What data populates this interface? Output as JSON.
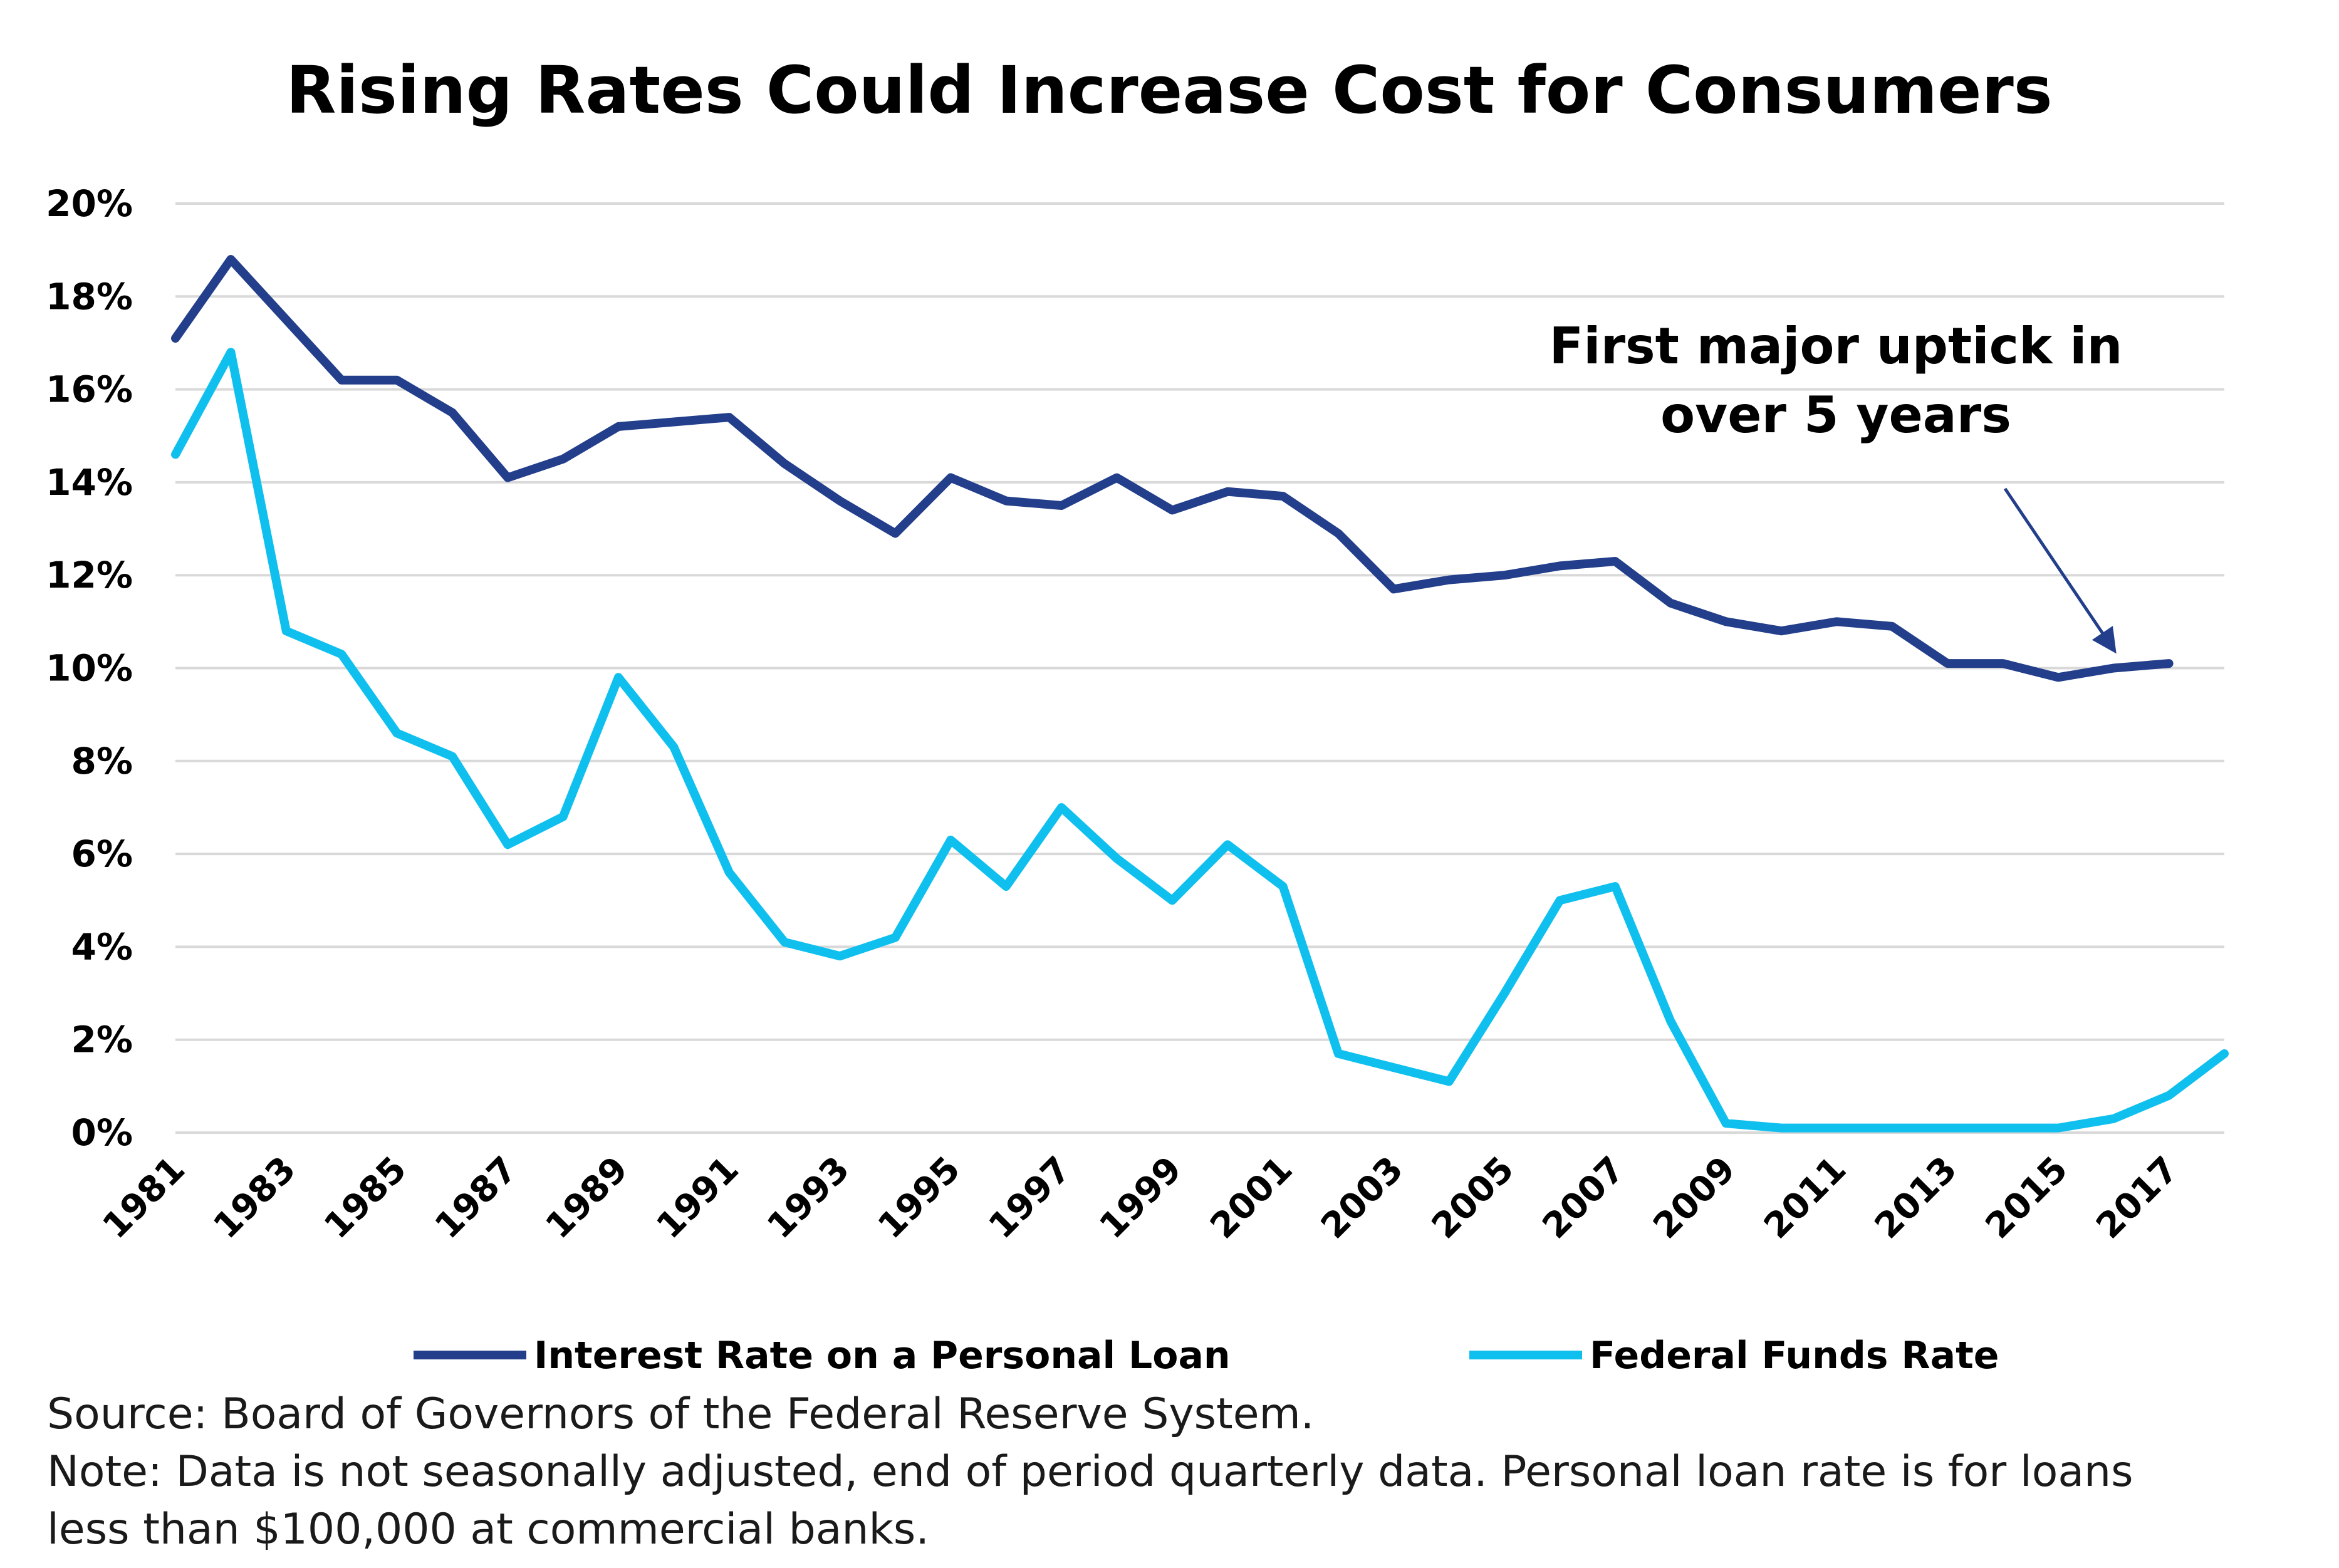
{
  "chart_data": {
    "type": "line",
    "title": "Rising Rates Could Increase Cost for Consumers",
    "x": [
      1981,
      1982,
      1983,
      1984,
      1985,
      1986,
      1987,
      1988,
      1989,
      1990,
      1991,
      1992,
      1993,
      1994,
      1995,
      1996,
      1997,
      1998,
      1999,
      2000,
      2001,
      2002,
      2003,
      2004,
      2005,
      2006,
      2007,
      2008,
      2009,
      2010,
      2011,
      2012,
      2013,
      2014,
      2015,
      2016,
      2017,
      2018
    ],
    "x_tick_labels": [
      "1981",
      "1983",
      "1985",
      "1987",
      "1989",
      "1991",
      "1993",
      "1995",
      "1997",
      "1999",
      "2001",
      "2003",
      "2005",
      "2007",
      "2009",
      "2011",
      "2013",
      "2015",
      "2017"
    ],
    "y_tick_labels": [
      "0%",
      "2%",
      "4%",
      "6%",
      "8%",
      "10%",
      "12%",
      "14%",
      "16%",
      "18%",
      "20%"
    ],
    "ylim": [
      0,
      20
    ],
    "y_unit": "%",
    "grid": true,
    "legend_position": "bottom",
    "series": [
      {
        "name": "Interest Rate on a Personal Loan",
        "color": "#233e8b",
        "values": [
          17.1,
          18.8,
          17.5,
          16.2,
          16.2,
          15.5,
          14.1,
          14.5,
          15.2,
          15.3,
          15.4,
          14.4,
          13.6,
          12.9,
          14.1,
          13.6,
          13.5,
          14.1,
          13.4,
          13.8,
          13.7,
          12.9,
          11.7,
          11.9,
          12.0,
          12.2,
          12.3,
          11.4,
          11.0,
          10.8,
          11.0,
          10.9,
          10.1,
          10.1,
          9.8,
          10.0,
          10.1,
          null
        ]
      },
      {
        "name": "Federal Funds Rate",
        "color": "#0fc0ef",
        "values": [
          14.6,
          16.8,
          10.8,
          10.3,
          8.6,
          8.1,
          6.2,
          6.8,
          9.8,
          8.3,
          5.6,
          4.1,
          3.8,
          4.2,
          6.3,
          5.3,
          7.0,
          5.9,
          5.0,
          6.2,
          5.3,
          1.7,
          1.4,
          1.1,
          3.0,
          5.0,
          5.3,
          2.4,
          0.2,
          0.1,
          0.1,
          0.1,
          0.1,
          0.1,
          0.1,
          0.3,
          0.8,
          1.7
        ]
      }
    ],
    "annotation": {
      "lines": [
        "First major uptick in",
        "over 5 years"
      ],
      "arrow_target_x": 2016,
      "arrow_target_y": 10.4,
      "arrow_color": "#233e8b"
    },
    "footnotes": [
      "Source: Board of Governors of the Federal Reserve System.",
      "Note: Data is not seasonally adjusted, end of period quarterly data. Personal loan rate is for loans",
      "less than $100,000 at commercial banks."
    ]
  }
}
